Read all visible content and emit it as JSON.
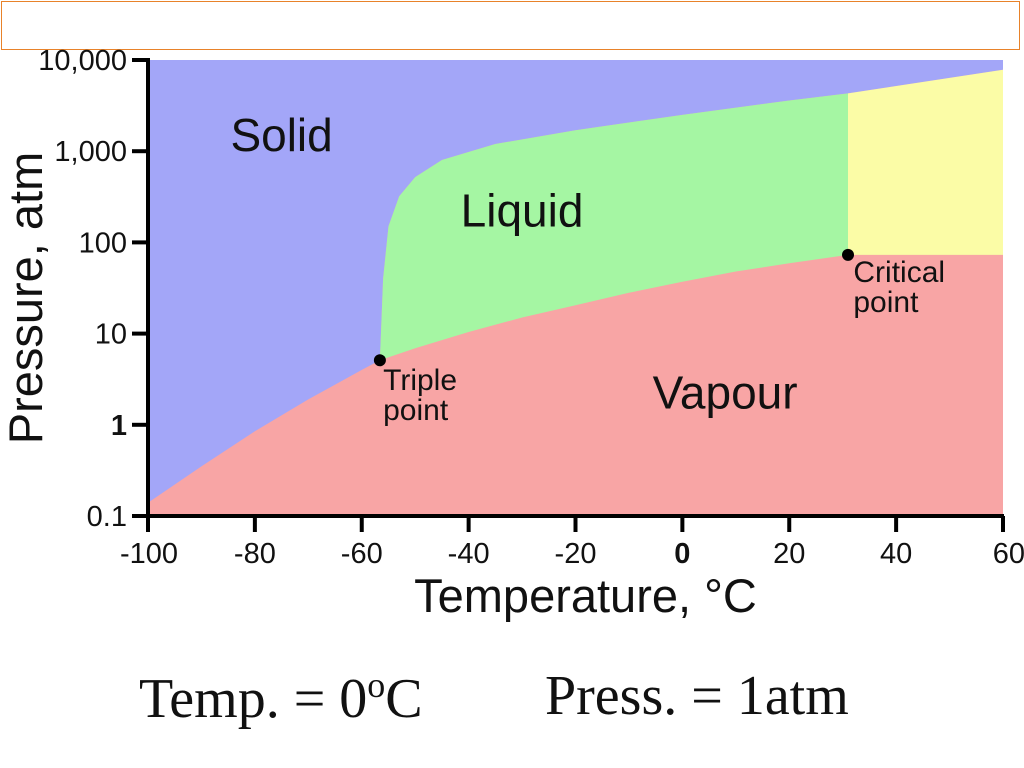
{
  "title_box_text": "",
  "chart_data": {
    "type": "area",
    "title": "",
    "xlabel": "Temperature, °C",
    "ylabel": "Pressure, atm",
    "x_scale": "linear",
    "y_scale": "log",
    "xlim": [
      -100,
      60
    ],
    "ylim": [
      0.1,
      10000
    ],
    "x_ticks": [
      -100,
      -80,
      -60,
      -40,
      -20,
      0,
      20,
      40,
      60
    ],
    "x_tick_labels": [
      "-100",
      "-80",
      "-60",
      "-40",
      "-20",
      "0",
      "20",
      "40",
      "60"
    ],
    "y_ticks": [
      0.1,
      1,
      10,
      100,
      1000,
      10000
    ],
    "y_tick_labels": [
      "0.1",
      "1",
      "10",
      "100",
      "1,000",
      "10,000"
    ],
    "bold_ticks": [
      "0",
      "1"
    ],
    "grid": false,
    "regions": [
      {
        "name": "Solid",
        "color": "#a3a6f8"
      },
      {
        "name": "Liquid",
        "color": "#a5f6a3"
      },
      {
        "name": "Vapour",
        "color": "#f8a5a5"
      },
      {
        "name": "",
        "color": "#fbfca6"
      }
    ],
    "series": [
      {
        "name": "",
        "type": "sublimation curve",
        "x": [
          -100,
          -90,
          -80,
          -70,
          -60,
          -56.6
        ],
        "y": [
          0.14,
          0.35,
          0.85,
          1.9,
          4.0,
          5.1
        ]
      },
      {
        "name": "",
        "type": "melting curve",
        "x": [
          -56.6,
          -56.0,
          -55.0,
          -53.0,
          -50.0,
          -45.0,
          -35.0,
          -20.0,
          0.0,
          20.0,
          31.0,
          60.0
        ],
        "y": [
          5.1,
          40,
          150,
          320,
          520,
          800,
          1200,
          1700,
          2500,
          3600,
          4300,
          7800
        ]
      },
      {
        "name": "",
        "type": "vaporization curve",
        "x": [
          -56.6,
          -50,
          -40,
          -30,
          -20,
          -10,
          0,
          10,
          20,
          31.0
        ],
        "y": [
          5.1,
          6.9,
          10.4,
          15,
          20.5,
          28,
          37,
          48,
          59,
          73
        ]
      }
    ],
    "points": [
      {
        "label": "Triple point",
        "x": -56.6,
        "y": 5.1
      },
      {
        "label": "Critical point",
        "x": 31.0,
        "y": 73
      }
    ],
    "region_labels": [
      {
        "text": "Solid",
        "x": -75,
        "y": 1000
      },
      {
        "text": "Liquid",
        "x": -30,
        "y": 150
      },
      {
        "text": "Vapour",
        "x": 8,
        "y": 1.5
      }
    ],
    "point_labels": [
      {
        "lines": [
          "Triple",
          "point"
        ],
        "x": -56.0,
        "y": 2.4
      },
      {
        "lines": [
          "Critical",
          "point"
        ],
        "x": 32.0,
        "y": 37
      }
    ]
  },
  "caption": {
    "temp_prefix": "Temp. = 0",
    "temp_sup": "o",
    "temp_suffix": "C",
    "press": "Press. = 1atm"
  }
}
